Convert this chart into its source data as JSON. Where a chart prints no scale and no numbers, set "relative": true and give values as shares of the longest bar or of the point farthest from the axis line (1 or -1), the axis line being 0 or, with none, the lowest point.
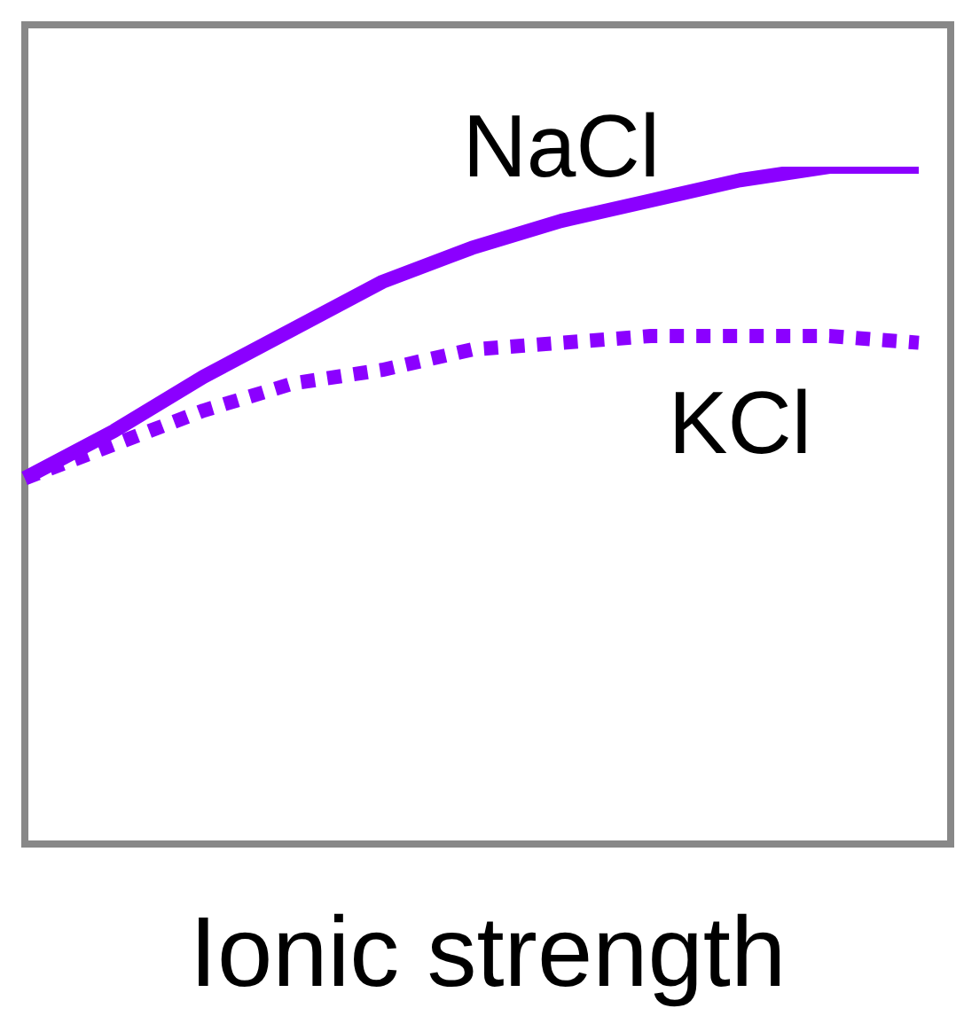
{
  "chart_data": {
    "type": "line",
    "relative": true,
    "xlabel": "Ionic strength",
    "categories": [
      null,
      null,
      null,
      null,
      null,
      null,
      null,
      null,
      null,
      null,
      null
    ],
    "series": [
      {
        "name": "NaCl",
        "color": "#8b00ff",
        "line_style": "solid",
        "values": [
          0.54,
          0.61,
          0.69,
          0.76,
          0.83,
          0.88,
          0.92,
          0.95,
          0.98,
          1.0,
          1.0
        ]
      },
      {
        "name": "KCl",
        "color": "#8b00ff",
        "line_style": "dotted",
        "values": [
          0.54,
          0.59,
          0.64,
          0.68,
          0.7,
          0.73,
          0.74,
          0.75,
          0.75,
          0.75,
          0.74
        ]
      }
    ]
  }
}
